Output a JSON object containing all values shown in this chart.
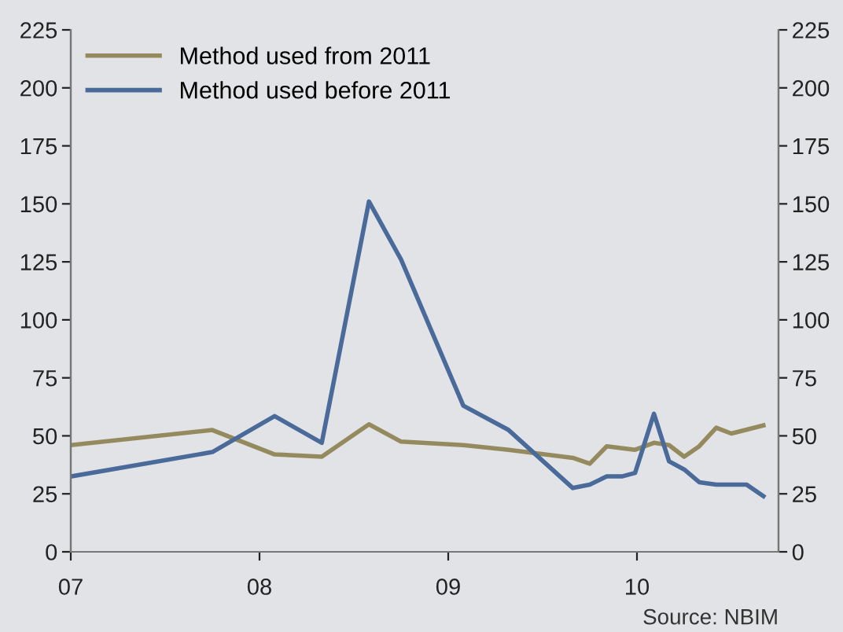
{
  "chart_data": {
    "type": "line",
    "xlim": [
      2007,
      2010.75
    ],
    "xticks": [
      {
        "value": 2007,
        "label": "07"
      },
      {
        "value": 2008,
        "label": "08"
      },
      {
        "value": 2009,
        "label": "09"
      },
      {
        "value": 2010,
        "label": "10"
      }
    ],
    "ylim": [
      0,
      225
    ],
    "yticks": [
      0,
      25,
      50,
      75,
      100,
      125,
      150,
      175,
      200,
      225
    ],
    "y2lim": [
      0,
      225
    ],
    "y2ticks": [
      0,
      25,
      50,
      75,
      100,
      125,
      150,
      175,
      200,
      225
    ],
    "legend": "top left",
    "grid": false,
    "marker": "none",
    "line_style": "solid",
    "annotations": [
      "Source: NBIM"
    ],
    "series": [
      {
        "name": "Method used from 2011",
        "color": "#948a5e",
        "x": [
          2007.0,
          2007.75,
          2008.08,
          2008.33,
          2008.58,
          2008.75,
          2009.08,
          2009.32,
          2009.66,
          2009.75,
          2009.84,
          2009.99,
          2010.09,
          2010.17,
          2010.25,
          2010.33,
          2010.42,
          2010.5,
          2010.67
        ],
        "values": [
          46,
          52.5,
          42,
          41,
          55,
          47.5,
          46,
          44,
          40.5,
          38,
          45.5,
          44,
          47,
          46,
          41,
          45.5,
          53.5,
          51,
          54.5
        ]
      },
      {
        "name": "Method used before 2011",
        "color": "#4a6a9a",
        "x": [
          2007.0,
          2007.75,
          2008.08,
          2008.33,
          2008.58,
          2008.75,
          2009.08,
          2009.32,
          2009.66,
          2009.75,
          2009.84,
          2009.92,
          2009.99,
          2010.09,
          2010.17,
          2010.25,
          2010.33,
          2010.42,
          2010.5,
          2010.58,
          2010.67
        ],
        "values": [
          32.5,
          43,
          58.5,
          47,
          151,
          126,
          63,
          52.5,
          27.5,
          29,
          32.5,
          32.5,
          34,
          59.5,
          39,
          35.5,
          30,
          29,
          29,
          29,
          24
        ]
      }
    ]
  }
}
